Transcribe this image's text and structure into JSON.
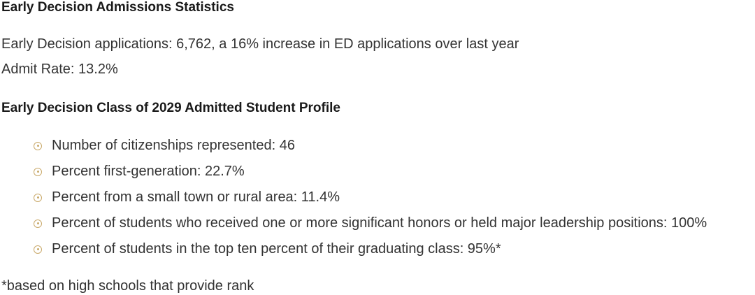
{
  "section1": {
    "heading": "Early Decision Admissions Statistics",
    "applications": "Early Decision applications: 6,762, a 16% increase in ED applications over last year",
    "admit_rate": "Admit Rate:  13.2%"
  },
  "section2": {
    "heading": "Early Decision Class of 2029 Admitted Student Profile",
    "bullet_icon": "circle-dot-icon",
    "accent_color": "#c9a96a",
    "items": [
      "Number of citizenships represented: 46",
      "Percent first-generation: 22.7%",
      "Percent from a small town or rural area: 11.4%",
      "Percent of students who received one or more significant honors or held major leadership positions: 100%",
      "Percent of students in the top ten percent of their graduating class: 95%*"
    ],
    "footnote": "*based on high schools that provide rank"
  }
}
